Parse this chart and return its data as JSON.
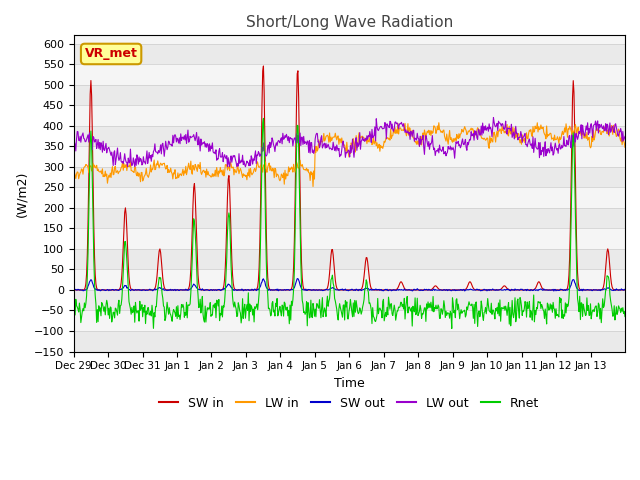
{
  "title": "Short/Long Wave Radiation",
  "xlabel": "Time",
  "ylabel": "(W/m2)",
  "ylim": [
    -150,
    620
  ],
  "yticks": [
    -150,
    -100,
    -50,
    0,
    50,
    100,
    150,
    200,
    250,
    300,
    350,
    400,
    450,
    500,
    550,
    600
  ],
  "xtick_labels": [
    "Dec 29",
    "Dec 30",
    "Dec 31",
    "Jan 1",
    "Jan 2",
    "Jan 3",
    "Jan 4",
    "Jan 5",
    "Jan 6",
    "Jan 7",
    "Jan 8",
    "Jan 9",
    "Jan 10",
    "Jan 11",
    "Jan 12",
    "Jan 13"
  ],
  "xtick_positions": [
    0,
    1,
    2,
    3,
    4,
    5,
    6,
    7,
    8,
    9,
    10,
    11,
    12,
    13,
    14,
    15
  ],
  "legend_labels": [
    "SW in",
    "LW in",
    "SW out",
    "LW out",
    "Rnet"
  ],
  "legend_colors": [
    "#cc0000",
    "#ff9900",
    "#0000cc",
    "#9900cc",
    "#00cc00"
  ],
  "vr_met_box_color": "#cc0000",
  "vr_met_box_bg": "#ffff99",
  "grid_color": "#cccccc",
  "n_days": 16,
  "points_per_day": 48
}
